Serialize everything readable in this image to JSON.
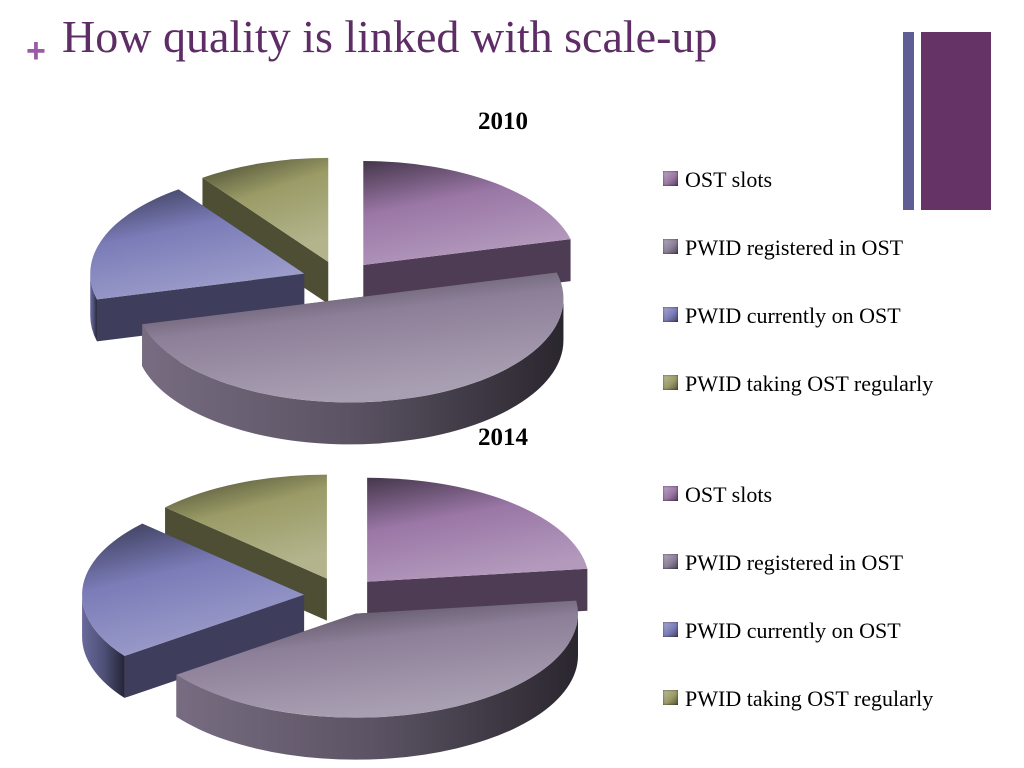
{
  "slide": {
    "title": "How quality is linked with scale-up",
    "plus_symbol": "+"
  },
  "colors": {
    "title": "#5e2d66",
    "accent_thin_bar": "#5e5d94",
    "accent_thick_bar": "#663366",
    "series": [
      "#9a77a6",
      "#8c7f98",
      "#7b7cb8",
      "#9a9b66"
    ]
  },
  "chart_data": [
    {
      "type": "pie",
      "style": "3d-exploded",
      "title": "2010",
      "categories": [
        "OST slots",
        "PWID registered in OST",
        "PWID currently on OST",
        "PWID taking OST regularly"
      ],
      "values": [
        21,
        50,
        19,
        10
      ],
      "legend": "right"
    },
    {
      "type": "pie",
      "style": "3d-exploded",
      "title": "2014",
      "categories": [
        "OST slots",
        "PWID registered in OST",
        "PWID currently on OST",
        "PWID taking OST regularly"
      ],
      "values": [
        23,
        42,
        22,
        13
      ],
      "legend": "right"
    }
  ]
}
